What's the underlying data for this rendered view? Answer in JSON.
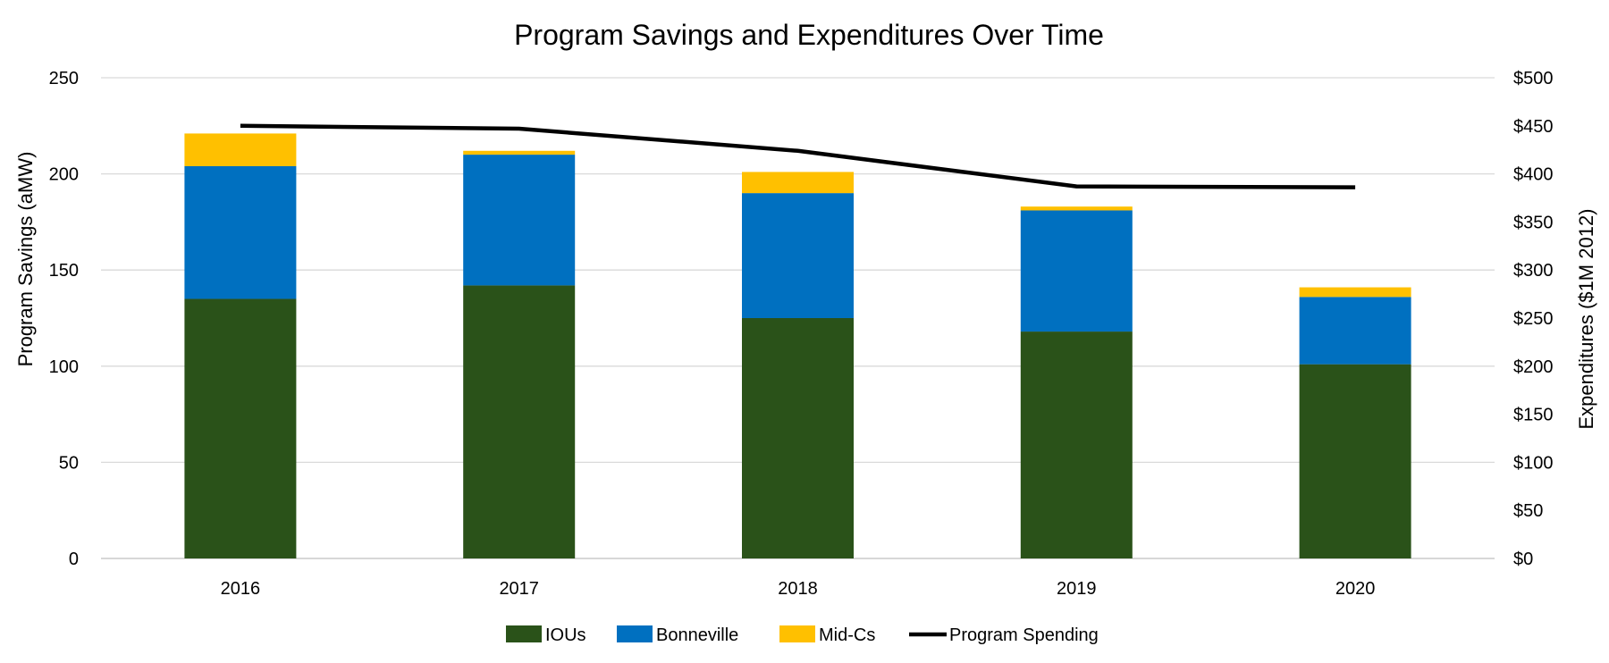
{
  "chart_data": {
    "type": "bar",
    "stacked": true,
    "title": "Program Savings and Expenditures Over Time",
    "categories": [
      "2016",
      "2017",
      "2018",
      "2019",
      "2020"
    ],
    "ylabel": "Program Savings (aMW)",
    "ylabel_right": "Expenditures ($1M 2012)",
    "ylim": [
      0,
      250
    ],
    "yticks": [
      0,
      50,
      100,
      150,
      200,
      250
    ],
    "ylim_right": [
      0,
      500
    ],
    "yticks_right": [
      "$0",
      "$50",
      "$100",
      "$150",
      "$200",
      "$250",
      "$300",
      "$350",
      "$400",
      "$450",
      "$500"
    ],
    "grid": true,
    "legend_position": "bottom",
    "series": [
      {
        "name": "IOUs",
        "type": "bar",
        "color": "#2A5219",
        "values": [
          135,
          142,
          125,
          118,
          101
        ]
      },
      {
        "name": "Bonneville",
        "type": "bar",
        "color": "#0070C0",
        "values": [
          69,
          68,
          65,
          63,
          35
        ]
      },
      {
        "name": "Mid-Cs",
        "type": "bar",
        "color": "#FFC000",
        "values": [
          17,
          2,
          11,
          2,
          5
        ]
      },
      {
        "name": "Program Spending",
        "type": "line",
        "axis": "right",
        "color": "#000000",
        "values": [
          450,
          447,
          424,
          387,
          386
        ]
      }
    ]
  }
}
